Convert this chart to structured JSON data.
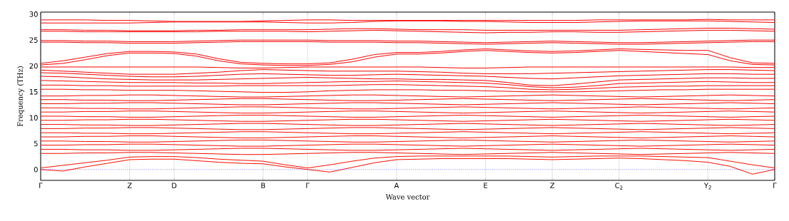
{
  "chart_data": {
    "type": "line",
    "xlabel": "Wave vector",
    "ylabel": "Frequency (THz)",
    "grid": "x",
    "marker": "none",
    "line_style": "solid",
    "categories": [
      "Γ",
      null,
      null,
      null,
      "Z",
      null,
      "D",
      null,
      null,
      null,
      "B",
      null,
      "Γ",
      null,
      null,
      null,
      "A",
      null,
      null,
      null,
      "E",
      null,
      null,
      "Z",
      null,
      null,
      "C$_{2}$",
      null,
      null,
      null,
      "Y$_{2}$",
      null,
      null,
      "Γ"
    ],
    "ylim": [
      -2.1,
      30.4
    ],
    "yticks": [
      0,
      5,
      10,
      15,
      20,
      25,
      30
    ],
    "ref_lines": [
      {
        "axis": "y",
        "value": 0,
        "color": "#0000ff",
        "line_style": "dotted"
      }
    ],
    "series": [
      {
        "color": "#ff0000",
        "values": [
          28.9,
          28.9,
          28.9,
          28.8,
          28.8,
          28.7,
          28.6,
          28.6,
          28.6,
          28.6,
          28.7,
          28.8,
          28.9,
          28.9,
          28.8,
          28.8,
          28.8,
          28.8,
          28.8,
          28.8,
          28.8,
          28.8,
          28.8,
          28.8,
          28.8,
          28.9,
          28.9,
          28.9,
          28.9,
          28.9,
          29.0,
          28.9,
          28.9,
          28.9
        ]
      },
      {
        "color": "#fc0000",
        "values": [
          28.3,
          28.3,
          28.3,
          28.3,
          28.3,
          28.4,
          28.5,
          28.5,
          28.5,
          28.5,
          28.5,
          28.4,
          28.3,
          28.3,
          28.4,
          28.6,
          28.7,
          28.7,
          28.7,
          28.6,
          28.6,
          28.5,
          28.4,
          28.4,
          28.4,
          28.5,
          28.6,
          28.7,
          28.7,
          28.7,
          28.7,
          28.6,
          28.5,
          28.4
        ]
      },
      {
        "color": "#f90000",
        "values": [
          27.0,
          27.0,
          26.9,
          26.9,
          26.8,
          26.8,
          26.8,
          26.9,
          26.9,
          27.0,
          27.0,
          27.0,
          27.0,
          27.1,
          27.2,
          27.2,
          27.1,
          27.0,
          27.0,
          27.0,
          26.9,
          26.9,
          26.9,
          26.9,
          26.9,
          26.9,
          26.9,
          27.0,
          27.1,
          27.2,
          27.3,
          27.3,
          27.2,
          27.1
        ]
      },
      {
        "color": "#f60000",
        "values": [
          26.7,
          26.7,
          26.6,
          26.6,
          26.6,
          26.6,
          26.6,
          26.6,
          26.7,
          26.7,
          26.7,
          26.7,
          26.6,
          26.7,
          26.8,
          26.9,
          26.8,
          26.7,
          26.6,
          26.5,
          26.4,
          26.5,
          26.5,
          26.6,
          26.6,
          26.5,
          26.5,
          26.6,
          26.7,
          26.8,
          26.9,
          26.9,
          26.8,
          26.7
        ]
      },
      {
        "color": "#f30000",
        "values": [
          24.9,
          24.9,
          24.8,
          24.8,
          24.7,
          24.7,
          24.7,
          24.8,
          24.9,
          25.0,
          25.0,
          25.0,
          25.0,
          24.9,
          24.9,
          24.9,
          24.8,
          24.8,
          24.7,
          24.6,
          24.5,
          24.6,
          24.7,
          24.8,
          24.7,
          24.6,
          24.5,
          24.5,
          24.6,
          24.7,
          24.8,
          24.9,
          25.0,
          25.0
        ]
      },
      {
        "color": "#f00000",
        "values": [
          24.6,
          24.6,
          24.5,
          24.5,
          24.4,
          24.4,
          24.4,
          24.5,
          24.6,
          24.7,
          24.7,
          24.7,
          24.7,
          24.6,
          24.6,
          24.6,
          24.5,
          24.5,
          24.4,
          24.3,
          24.2,
          24.3,
          24.4,
          24.5,
          24.4,
          24.3,
          24.2,
          24.2,
          24.3,
          24.4,
          24.5,
          24.6,
          24.7,
          24.7
        ]
      },
      {
        "color": "#ff0300",
        "values": [
          20.5,
          21.0,
          21.7,
          22.4,
          22.8,
          22.8,
          22.7,
          22.3,
          21.4,
          20.7,
          20.5,
          20.4,
          20.4,
          20.6,
          21.3,
          22.2,
          22.6,
          22.6,
          22.8,
          23.1,
          23.3,
          23.1,
          22.9,
          22.8,
          22.9,
          23.1,
          23.3,
          23.2,
          23.1,
          23.0,
          23.0,
          21.6,
          20.6,
          20.5
        ]
      },
      {
        "color": "#fc0300",
        "values": [
          20.2,
          20.5,
          21.2,
          22.0,
          22.5,
          22.5,
          22.4,
          21.9,
          21.0,
          20.4,
          20.2,
          20.1,
          20.1,
          20.3,
          20.8,
          21.7,
          22.3,
          22.3,
          22.5,
          22.8,
          23.0,
          22.8,
          22.6,
          22.5,
          22.6,
          22.8,
          23.0,
          22.8,
          22.6,
          22.4,
          22.2,
          21.0,
          20.3,
          20.2
        ]
      },
      {
        "color": "#f90300",
        "values": [
          19.8,
          19.8,
          19.8,
          19.8,
          19.8,
          19.8,
          19.8,
          19.8,
          19.7,
          19.6,
          19.6,
          19.7,
          19.8,
          19.8,
          19.8,
          19.8,
          19.8,
          19.8,
          19.7,
          19.6,
          19.6,
          19.7,
          19.8,
          19.8,
          19.8,
          19.8,
          19.8,
          19.8,
          19.8,
          19.8,
          19.8,
          19.8,
          19.7,
          19.7
        ]
      },
      {
        "color": "#f60300",
        "values": [
          19.2,
          19.0,
          18.8,
          18.6,
          18.4,
          18.4,
          18.4,
          18.6,
          18.8,
          19.1,
          19.3,
          19.2,
          19.1,
          19.0,
          19.0,
          19.0,
          19.0,
          18.9,
          18.8,
          18.6,
          18.5,
          18.5,
          18.5,
          18.6,
          18.7,
          18.8,
          18.9,
          19.0,
          19.1,
          19.2,
          19.3,
          19.3,
          19.2,
          19.1
        ]
      },
      {
        "color": "#f30300",
        "values": [
          18.7,
          18.6,
          18.4,
          18.2,
          18.0,
          17.9,
          17.9,
          18.0,
          18.2,
          18.4,
          18.5,
          18.4,
          18.3,
          18.2,
          18.2,
          18.3,
          18.4,
          18.3,
          18.2,
          18.1,
          18.0,
          17.8,
          17.6,
          17.5,
          17.7,
          17.9,
          18.1,
          18.2,
          18.3,
          18.4,
          18.5,
          18.5,
          18.4,
          18.4
        ]
      },
      {
        "color": "#f00300",
        "values": [
          18.0,
          17.9,
          17.7,
          17.5,
          17.4,
          17.3,
          17.3,
          17.3,
          17.4,
          17.5,
          17.6,
          17.7,
          17.8,
          17.7,
          17.6,
          17.5,
          17.5,
          17.4,
          17.4,
          17.3,
          17.2,
          16.8,
          16.3,
          16.2,
          16.5,
          16.9,
          17.3,
          17.4,
          17.5,
          17.6,
          17.7,
          17.7,
          17.6,
          17.6
        ]
      },
      {
        "color": "#ff0600",
        "values": [
          17.2,
          17.1,
          17.0,
          16.9,
          16.8,
          16.8,
          16.8,
          16.7,
          16.7,
          16.6,
          16.6,
          16.7,
          16.8,
          16.9,
          17.0,
          17.0,
          17.1,
          17.0,
          16.9,
          16.8,
          16.7,
          16.4,
          16.0,
          15.8,
          15.9,
          16.2,
          16.6,
          16.7,
          16.8,
          16.9,
          17.0,
          16.9,
          16.8,
          16.8
        ]
      },
      {
        "color": "#fc0600",
        "values": [
          16.3,
          16.3,
          16.2,
          16.2,
          16.1,
          16.1,
          16.1,
          16.1,
          16.1,
          16.2,
          16.2,
          16.2,
          16.2,
          16.2,
          16.3,
          16.4,
          16.4,
          16.3,
          16.2,
          16.1,
          16.0,
          15.8,
          15.5,
          15.4,
          15.5,
          15.7,
          15.9,
          16.0,
          16.1,
          16.1,
          16.2,
          16.2,
          16.2,
          16.2
        ]
      },
      {
        "color": "#f90600",
        "values": [
          15.5,
          15.5,
          15.4,
          15.4,
          15.3,
          15.3,
          15.3,
          15.2,
          15.1,
          15.0,
          14.9,
          14.9,
          15.0,
          15.2,
          15.3,
          15.4,
          15.4,
          15.4,
          15.3,
          15.3,
          15.2,
          15.1,
          15.0,
          15.0,
          15.0,
          15.1,
          15.2,
          15.3,
          15.4,
          15.4,
          15.5,
          15.5,
          15.5,
          15.5
        ]
      },
      {
        "color": "#f60600",
        "values": [
          14.2,
          14.2,
          14.3,
          14.3,
          14.4,
          14.4,
          14.3,
          14.2,
          14.1,
          14.0,
          14.0,
          14.1,
          14.2,
          14.3,
          14.4,
          14.4,
          14.3,
          14.2,
          14.1,
          14.0,
          14.1,
          14.2,
          14.3,
          14.4,
          14.3,
          14.2,
          14.1,
          14.0,
          14.1,
          14.2,
          14.3,
          14.4,
          14.3,
          14.2
        ]
      },
      {
        "color": "#f30600",
        "values": [
          13.5,
          13.5,
          13.4,
          13.4,
          13.3,
          13.3,
          13.4,
          13.5,
          13.6,
          13.7,
          13.7,
          13.6,
          13.5,
          13.4,
          13.3,
          13.3,
          13.4,
          13.5,
          13.6,
          13.7,
          13.6,
          13.5,
          13.4,
          13.3,
          13.4,
          13.5,
          13.6,
          13.7,
          13.6,
          13.5,
          13.4,
          13.3,
          13.4,
          13.5
        ]
      },
      {
        "color": "#f00600",
        "values": [
          12.7,
          12.7,
          12.8,
          12.8,
          12.9,
          12.9,
          12.8,
          12.7,
          12.6,
          12.5,
          12.5,
          12.6,
          12.7,
          12.8,
          12.9,
          12.9,
          12.8,
          12.7,
          12.6,
          12.5,
          12.6,
          12.7,
          12.8,
          12.9,
          12.8,
          12.7,
          12.6,
          12.5,
          12.6,
          12.7,
          12.8,
          12.9,
          12.8,
          12.7
        ]
      },
      {
        "color": "#ff0900",
        "values": [
          11.9,
          11.9,
          11.8,
          11.8,
          11.7,
          11.7,
          11.8,
          11.9,
          12.0,
          12.1,
          12.1,
          12.0,
          11.9,
          11.8,
          11.7,
          11.7,
          11.8,
          11.9,
          12.0,
          12.1,
          12.0,
          11.9,
          11.8,
          11.7,
          11.8,
          11.9,
          12.0,
          12.1,
          12.0,
          11.9,
          11.8,
          11.7,
          11.8,
          11.9
        ]
      },
      {
        "color": "#fc0900",
        "values": [
          11.1,
          11.1,
          11.2,
          11.2,
          11.3,
          11.3,
          11.2,
          11.1,
          11.0,
          10.9,
          10.9,
          11.0,
          11.1,
          11.2,
          11.3,
          11.3,
          11.2,
          11.1,
          11.0,
          10.9,
          11.0,
          11.1,
          11.2,
          11.3,
          11.2,
          11.1,
          11.0,
          10.9,
          11.0,
          11.1,
          11.2,
          11.3,
          11.2,
          11.1
        ]
      },
      {
        "color": "#f90900",
        "values": [
          10.3,
          10.3,
          10.2,
          10.2,
          10.1,
          10.1,
          10.2,
          10.3,
          10.4,
          10.5,
          10.5,
          10.4,
          10.3,
          10.2,
          10.1,
          10.1,
          10.2,
          10.3,
          10.4,
          10.5,
          10.4,
          10.3,
          10.2,
          10.1,
          10.2,
          10.3,
          10.4,
          10.5,
          10.4,
          10.3,
          10.2,
          10.1,
          10.2,
          10.3
        ]
      },
      {
        "color": "#f60900",
        "values": [
          9.5,
          9.5,
          9.6,
          9.6,
          9.7,
          9.7,
          9.6,
          9.5,
          9.4,
          9.3,
          9.3,
          9.4,
          9.5,
          9.6,
          9.7,
          9.7,
          9.6,
          9.5,
          9.4,
          9.3,
          9.4,
          9.5,
          9.6,
          9.7,
          9.6,
          9.5,
          9.4,
          9.3,
          9.4,
          9.5,
          9.6,
          9.7,
          9.6,
          9.5
        ]
      },
      {
        "color": "#f30900",
        "values": [
          8.7,
          8.7,
          8.6,
          8.6,
          8.5,
          8.5,
          8.6,
          8.7,
          8.8,
          8.9,
          8.9,
          8.8,
          8.7,
          8.6,
          8.5,
          8.5,
          8.6,
          8.7,
          8.8,
          8.9,
          8.8,
          8.7,
          8.6,
          8.5,
          8.6,
          8.7,
          8.8,
          8.9,
          8.8,
          8.7,
          8.6,
          8.5,
          8.6,
          8.7
        ]
      },
      {
        "color": "#f00900",
        "values": [
          7.9,
          7.9,
          8.0,
          8.0,
          8.1,
          8.1,
          8.0,
          7.9,
          7.8,
          7.7,
          7.7,
          7.8,
          7.9,
          8.0,
          8.1,
          8.1,
          8.0,
          7.9,
          7.8,
          7.7,
          7.8,
          7.9,
          8.0,
          8.1,
          8.0,
          7.9,
          7.8,
          7.7,
          7.8,
          7.9,
          8.0,
          8.1,
          8.0,
          7.9
        ]
      },
      {
        "color": "#ff0c00",
        "values": [
          7.1,
          7.1,
          7.0,
          7.0,
          6.9,
          6.9,
          7.0,
          7.1,
          7.2,
          7.3,
          7.3,
          7.2,
          7.1,
          7.0,
          6.9,
          6.9,
          7.0,
          7.1,
          7.2,
          7.3,
          7.2,
          7.1,
          7.0,
          6.9,
          7.0,
          7.1,
          7.2,
          7.3,
          7.2,
          7.1,
          7.0,
          6.9,
          7.0,
          7.1
        ]
      },
      {
        "color": "#fc0c00",
        "values": [
          6.3,
          6.3,
          6.4,
          6.4,
          6.5,
          6.5,
          6.4,
          6.3,
          6.2,
          6.1,
          6.1,
          6.2,
          6.3,
          6.4,
          6.5,
          6.5,
          6.4,
          6.3,
          6.2,
          6.1,
          6.2,
          6.3,
          6.4,
          6.5,
          6.4,
          6.3,
          6.2,
          6.1,
          6.2,
          6.3,
          6.4,
          6.5,
          6.4,
          6.3
        ]
      },
      {
        "color": "#f90c00",
        "values": [
          5.5,
          5.5,
          5.4,
          5.4,
          5.3,
          5.3,
          5.4,
          5.5,
          5.6,
          5.7,
          5.7,
          5.6,
          5.5,
          5.4,
          5.3,
          5.3,
          5.4,
          5.5,
          5.6,
          5.7,
          5.6,
          5.5,
          5.4,
          5.3,
          5.4,
          5.5,
          5.6,
          5.7,
          5.6,
          5.5,
          5.4,
          5.3,
          5.4,
          5.5
        ]
      },
      {
        "color": "#f60c00",
        "values": [
          4.7,
          4.7,
          4.8,
          4.8,
          4.9,
          4.9,
          4.8,
          4.7,
          4.6,
          4.5,
          4.5,
          4.6,
          4.7,
          4.8,
          4.9,
          4.9,
          4.8,
          4.7,
          4.6,
          4.5,
          4.6,
          4.7,
          4.8,
          4.9,
          4.8,
          4.7,
          4.6,
          4.5,
          4.6,
          4.7,
          4.8,
          4.9,
          4.8,
          4.7
        ]
      },
      {
        "color": "#f30c00",
        "values": [
          3.9,
          3.9,
          3.8,
          3.8,
          3.7,
          3.7,
          3.8,
          3.9,
          4.0,
          4.1,
          4.1,
          4.0,
          3.9,
          3.8,
          3.7,
          3.7,
          3.8,
          3.9,
          4.0,
          4.1,
          4.0,
          3.9,
          3.8,
          3.7,
          3.8,
          3.9,
          4.0,
          4.1,
          4.0,
          3.9,
          3.8,
          3.7,
          3.8,
          3.9
        ]
      },
      {
        "color": "#f00c00",
        "values": [
          3.1,
          3.1,
          3.2,
          3.2,
          3.3,
          3.3,
          3.2,
          3.1,
          3.0,
          2.9,
          2.9,
          3.0,
          3.1,
          3.2,
          3.3,
          3.3,
          3.2,
          3.1,
          3.0,
          2.9,
          3.0,
          3.1,
          3.2,
          3.3,
          3.2,
          3.1,
          3.0,
          2.9,
          3.0,
          3.1,
          3.2,
          3.3,
          3.2,
          3.1
        ]
      },
      {
        "color": "#ff0f00",
        "values": [
          0.3,
          0.8,
          1.3,
          1.8,
          2.4,
          2.5,
          2.5,
          2.3,
          2.0,
          1.8,
          1.6,
          0.9,
          0.3,
          0.9,
          1.6,
          2.2,
          2.5,
          2.6,
          2.6,
          2.6,
          2.6,
          2.6,
          2.5,
          2.4,
          2.5,
          2.6,
          2.6,
          2.6,
          2.5,
          2.4,
          2.3,
          1.6,
          0.9,
          0.3
        ]
      },
      {
        "color": "#fc0f00",
        "values": [
          0,
          -0.3,
          0.5,
          1.2,
          1.9,
          2.0,
          2.0,
          1.7,
          1.4,
          1.2,
          1.1,
          0.5,
          0,
          -0.5,
          0.4,
          1.3,
          1.9,
          2.0,
          2.1,
          2.1,
          2.1,
          2.1,
          2.0,
          1.9,
          2.0,
          2.1,
          2.2,
          2.1,
          1.9,
          1.7,
          1.4,
          0.6,
          -0.9,
          0
        ]
      }
    ]
  }
}
